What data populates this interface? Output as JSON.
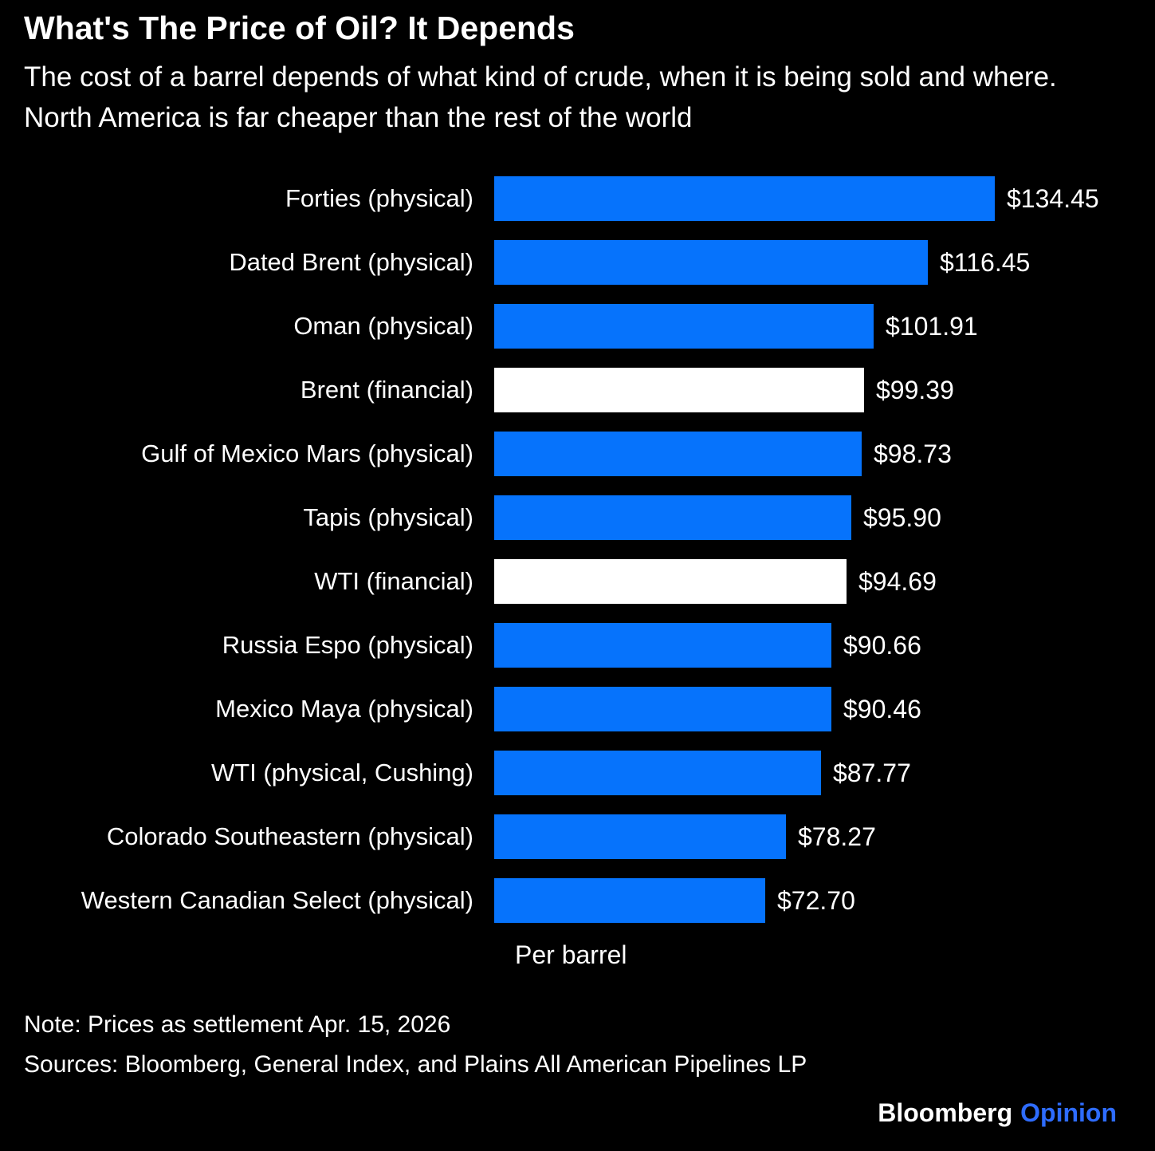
{
  "chart_data": {
    "type": "bar",
    "orientation": "horizontal",
    "title": "What's The Price of Oil? It Depends",
    "subtitle": "The cost of a barrel depends of what kind of crude, when it is being sold and where. North America is far cheaper than the rest of the world",
    "categories": [
      "Forties (physical)",
      "Dated Brent (physical)",
      "Oman (physical)",
      "Brent (financial)",
      "Gulf of Mexico Mars (physical)",
      "Tapis (physical)",
      "WTI (financial)",
      "Russia Espo (physical)",
      "Mexico Maya (physical)",
      "WTI (physical, Cushing)",
      "Colorado Southeastern (physical)",
      "Western Canadian Select (physical)"
    ],
    "values": [
      134.45,
      116.45,
      101.91,
      99.39,
      98.73,
      95.9,
      94.69,
      90.66,
      90.46,
      87.77,
      78.27,
      72.7
    ],
    "value_labels": [
      "$134.45",
      "$116.45",
      "$101.91",
      "$99.39",
      "$98.73",
      "$95.90",
      "$94.69",
      "$90.66",
      "$90.46",
      "$87.77",
      "$78.27",
      "$72.70"
    ],
    "bar_colors": [
      "#0673fc",
      "#0673fc",
      "#0673fc",
      "#ffffff",
      "#0673fc",
      "#0673fc",
      "#ffffff",
      "#0673fc",
      "#0673fc",
      "#0673fc",
      "#0673fc",
      "#0673fc"
    ],
    "xlabel": "Per barrel",
    "xlim": [
      0,
      134.45
    ],
    "grid": false,
    "legend": "none"
  },
  "footer": {
    "note": "Note: Prices as settlement Apr. 15, 2026",
    "sources": "Sources: Bloomberg, General Index, and Plains All American Pipelines LP",
    "brand_name": "Bloomberg",
    "brand_edition": "Opinion"
  },
  "colors": {
    "background": "#000000",
    "text": "#ffffff",
    "bar_blue": "#0673fc",
    "bar_white": "#ffffff",
    "brand_blue": "#2e6cff"
  }
}
